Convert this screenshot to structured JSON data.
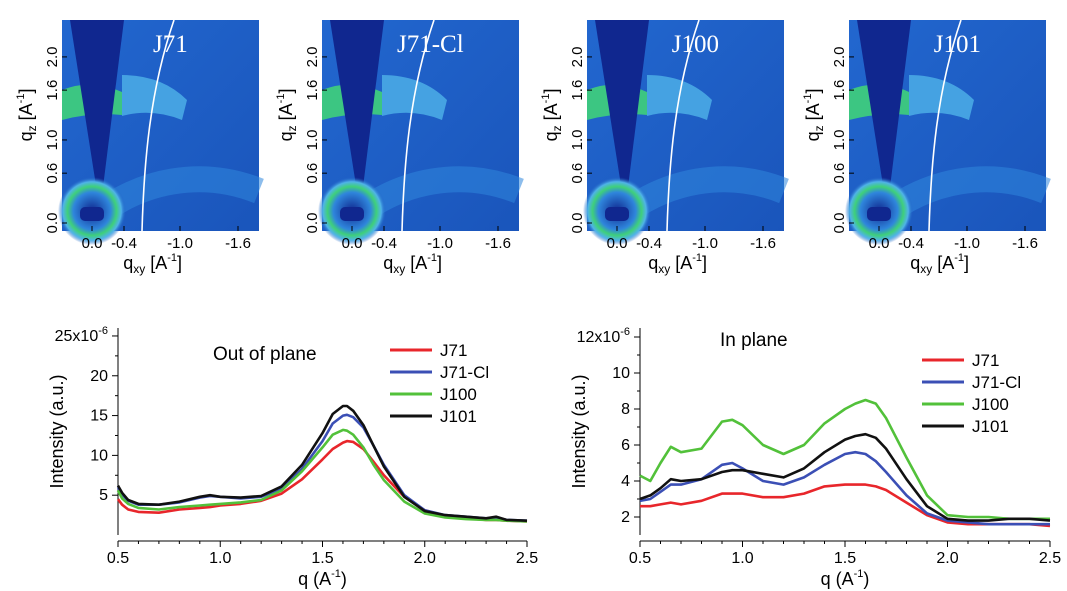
{
  "figure": {
    "gixd_panels": [
      {
        "label": "J71",
        "qz_label": "q",
        "qz_sub": "z",
        "qz_unit": " [A",
        "qz_sup": "-1",
        "qz_close": "]",
        "qxy_label": "q",
        "qxy_sub": "xy",
        "qxy_unit": " [A",
        "qxy_sup": "-1",
        "qxy_close": "]",
        "y_ticks": [
          "0.0",
          "0.6",
          "1.0",
          "1.6",
          "2.0"
        ],
        "x_ticks": [
          "0.0",
          "-0.4",
          "-1.0",
          "-1.6"
        ]
      },
      {
        "label": "J71-Cl",
        "qz_label": "q",
        "qz_sub": "z",
        "qz_unit": " [A",
        "qz_sup": "-1",
        "qz_close": "]",
        "qxy_label": "q",
        "qxy_sub": "xy",
        "qxy_unit": " [A",
        "qxy_sup": "-1",
        "qxy_close": "]",
        "y_ticks": [
          "0.0",
          "0.6",
          "1.0",
          "1.6",
          "2.0"
        ],
        "x_ticks": [
          "0.0",
          "-0.4",
          "-1.0",
          "-1.6"
        ]
      },
      {
        "label": "J100",
        "qz_label": "q",
        "qz_sub": "z",
        "qz_unit": " [A",
        "qz_sup": "-1",
        "qz_close": "]",
        "qxy_label": "q",
        "qxy_sub": "xy",
        "qxy_unit": " [A",
        "qxy_sup": "-1",
        "qxy_close": "]",
        "y_ticks": [
          "0.0",
          "0.6",
          "1.0",
          "1.6",
          "2.0"
        ],
        "x_ticks": [
          "0.0",
          "-0.4",
          "-1.0",
          "-1.6"
        ]
      },
      {
        "label": "J101",
        "qz_label": "q",
        "qz_sub": "z",
        "qz_unit": " [A",
        "qz_sup": "-1",
        "qz_close": "]",
        "qxy_label": "q",
        "qxy_sub": "xy",
        "qxy_unit": " [A",
        "qxy_sup": "-1",
        "qxy_close": "]",
        "y_ticks": [
          "0.0",
          "0.6",
          "1.0",
          "1.6",
          "2.0"
        ],
        "x_ticks": [
          "0.0",
          "-0.4",
          "-1.0",
          "-1.6"
        ]
      }
    ],
    "colormap": {
      "background": "#1f5fc4",
      "dark": "#10278f",
      "mid": "#2f86dc",
      "light": "#4fb3e8",
      "peak": "#3fd07a"
    }
  },
  "chart_data": [
    {
      "type": "line",
      "title": "Out of plane",
      "xlabel": "q (A",
      "xlabel_sup": "-1",
      "xlabel_close": ")",
      "ylabel": "Intensity (a.u.)",
      "xlim": [
        0.5,
        2.5
      ],
      "ylim": [
        0,
        26
      ],
      "y_exponent": "25x10",
      "y_exponent_sup": "-6",
      "y_ticks": [
        5,
        10,
        15,
        20,
        25
      ],
      "y_tick_labels": [
        "5",
        "10",
        "15",
        "20",
        ""
      ],
      "x_ticks": [
        0.5,
        1.0,
        1.5,
        2.0,
        2.5
      ],
      "x_tick_labels": [
        "0.5",
        "1.0",
        "1.5",
        "2.0",
        "2.5"
      ],
      "x": [
        0.5,
        0.52,
        0.55,
        0.6,
        0.7,
        0.8,
        0.9,
        0.95,
        1.0,
        1.1,
        1.2,
        1.3,
        1.4,
        1.5,
        1.55,
        1.6,
        1.62,
        1.65,
        1.7,
        1.75,
        1.8,
        1.9,
        2.0,
        2.1,
        2.2,
        2.3,
        2.35,
        2.4,
        2.5
      ],
      "series": [
        {
          "name": "J71",
          "color": "#e8262b",
          "values": [
            4.5,
            3.8,
            3.2,
            2.9,
            2.8,
            3.2,
            3.4,
            3.5,
            3.7,
            3.9,
            4.3,
            5.2,
            7.0,
            9.5,
            10.8,
            11.6,
            11.8,
            11.7,
            10.8,
            9.2,
            7.5,
            4.8,
            3.1,
            2.4,
            2.1,
            1.9,
            1.9,
            1.8,
            1.7
          ]
        },
        {
          "name": "J71-Cl",
          "color": "#3b4fb5",
          "values": [
            6.0,
            5.1,
            4.3,
            3.8,
            3.8,
            4.1,
            4.7,
            4.9,
            4.8,
            4.6,
            4.8,
            5.8,
            8.3,
            11.8,
            14.0,
            15.0,
            15.1,
            14.8,
            13.5,
            11.2,
            8.8,
            5.0,
            3.1,
            2.5,
            2.3,
            2.1,
            2.2,
            1.9,
            1.8
          ]
        },
        {
          "name": "J100",
          "color": "#52c13a",
          "values": [
            5.6,
            4.6,
            3.9,
            3.4,
            3.2,
            3.5,
            3.7,
            3.8,
            3.9,
            4.1,
            4.4,
            5.6,
            8.0,
            11.0,
            12.6,
            13.2,
            13.1,
            12.6,
            11.0,
            8.8,
            6.9,
            4.2,
            2.7,
            2.2,
            2.0,
            1.9,
            1.9,
            1.8,
            1.7
          ]
        },
        {
          "name": "J101",
          "color": "#111111",
          "values": [
            6.2,
            5.3,
            4.4,
            3.9,
            3.8,
            4.2,
            4.8,
            5.0,
            4.8,
            4.7,
            4.9,
            6.1,
            8.8,
            12.8,
            15.2,
            16.2,
            16.2,
            15.6,
            13.8,
            11.2,
            8.6,
            4.8,
            3.0,
            2.5,
            2.3,
            2.1,
            2.3,
            1.9,
            1.8
          ]
        }
      ],
      "legend_position": "top-right"
    },
    {
      "type": "line",
      "title": "In plane",
      "xlabel": "q (A",
      "xlabel_sup": "-1",
      "xlabel_close": ")",
      "ylabel": "Intensity (a.u.)",
      "xlim": [
        0.5,
        2.5
      ],
      "ylim": [
        1,
        12.5
      ],
      "y_exponent": "12x10",
      "y_exponent_sup": "-6",
      "y_ticks": [
        2,
        4,
        6,
        8,
        10,
        12
      ],
      "y_tick_labels": [
        "2",
        "4",
        "6",
        "8",
        "10",
        ""
      ],
      "x_ticks": [
        0.5,
        1.0,
        1.5,
        2.0,
        2.5
      ],
      "x_tick_labels": [
        "0.5",
        "1.0",
        "1.5",
        "2.0",
        "2.5"
      ],
      "x": [
        0.5,
        0.55,
        0.6,
        0.65,
        0.7,
        0.8,
        0.9,
        0.95,
        1.0,
        1.1,
        1.2,
        1.3,
        1.4,
        1.5,
        1.55,
        1.6,
        1.65,
        1.7,
        1.8,
        1.9,
        2.0,
        2.1,
        2.2,
        2.3,
        2.4,
        2.5
      ],
      "series": [
        {
          "name": "J71",
          "color": "#e8262b",
          "values": [
            2.6,
            2.6,
            2.7,
            2.8,
            2.7,
            2.9,
            3.3,
            3.3,
            3.3,
            3.1,
            3.1,
            3.3,
            3.7,
            3.8,
            3.8,
            3.8,
            3.7,
            3.5,
            2.8,
            2.1,
            1.7,
            1.6,
            1.6,
            1.6,
            1.6,
            1.5
          ]
        },
        {
          "name": "J71-Cl",
          "color": "#3b4fb5",
          "values": [
            2.9,
            3.0,
            3.4,
            3.8,
            3.8,
            4.1,
            4.9,
            5.0,
            4.7,
            4.0,
            3.8,
            4.2,
            4.9,
            5.5,
            5.6,
            5.5,
            5.1,
            4.5,
            3.2,
            2.2,
            1.8,
            1.7,
            1.6,
            1.6,
            1.6,
            1.6
          ]
        },
        {
          "name": "J100",
          "color": "#52c13a",
          "values": [
            4.3,
            4.0,
            5.0,
            5.9,
            5.6,
            5.8,
            7.3,
            7.4,
            7.1,
            6.0,
            5.5,
            6.0,
            7.2,
            8.0,
            8.3,
            8.5,
            8.3,
            7.5,
            5.3,
            3.2,
            2.1,
            2.0,
            2.0,
            1.9,
            1.9,
            1.9
          ]
        },
        {
          "name": "J101",
          "color": "#111111",
          "values": [
            3.0,
            3.2,
            3.6,
            4.1,
            4.0,
            4.1,
            4.5,
            4.6,
            4.6,
            4.4,
            4.2,
            4.7,
            5.6,
            6.3,
            6.5,
            6.6,
            6.4,
            5.8,
            4.1,
            2.6,
            1.9,
            1.8,
            1.8,
            1.9,
            1.9,
            1.8
          ]
        }
      ],
      "legend_position": "top-right"
    }
  ]
}
